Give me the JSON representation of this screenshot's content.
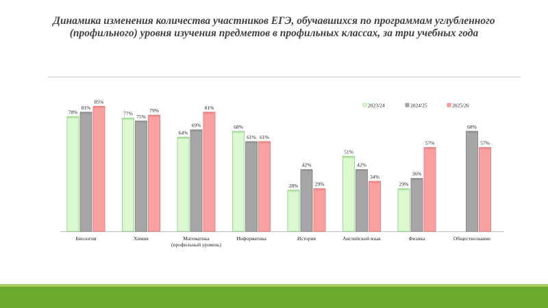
{
  "title": "Динамика изменения количества участников ЕГЭ, обучавшихся по программам углубленного (профильного) уровня изучения предметов в профильных классах, за три учебных года",
  "colors": {
    "series": [
      "#dcf8d2",
      "#a6a6a6",
      "#f9a0a0"
    ],
    "series_edge": [
      "#9cd98c",
      "#8c8c8c",
      "#e88080"
    ],
    "footer_light": "#a4cf5e",
    "footer_dark": "#6aa92e"
  },
  "chart_data": {
    "type": "bar",
    "title": "Динамика изменения количества участников ЕГЭ, обучавшихся по программам углубленного (профильного) уровня изучения предметов в профильных классах, за три учебных года",
    "categories": [
      [
        "Биология"
      ],
      [
        "Химия"
      ],
      [
        "Математика",
        "(профильный уровень)"
      ],
      [
        "Информатика"
      ],
      [
        "История"
      ],
      [
        "Английский язык"
      ],
      [
        "Физика"
      ],
      [
        "Обществознание"
      ]
    ],
    "series": [
      {
        "name": "2023/24",
        "values": [
          78,
          77,
          64,
          68,
          28,
          51,
          29,
          null
        ],
        "labels": [
          "78%",
          "77%",
          "64%",
          "68%",
          "28%",
          "51%",
          "29%",
          null
        ]
      },
      {
        "name": "2024/25",
        "values": [
          81,
          75,
          69,
          61,
          42,
          42,
          36,
          68
        ],
        "labels": [
          "81%",
          "75%",
          "69%",
          "61%",
          "42%",
          "42%",
          "36%",
          "68%"
        ]
      },
      {
        "name": "2025/26",
        "values": [
          85,
          79,
          81,
          61,
          29,
          34,
          57,
          57
        ],
        "labels": [
          "85%",
          "79%",
          "81%",
          "61%",
          "29%",
          "34%",
          "57%",
          "57%"
        ]
      }
    ],
    "ylim": [
      0,
      100
    ],
    "legend_position": "top-right",
    "grid": false
  }
}
